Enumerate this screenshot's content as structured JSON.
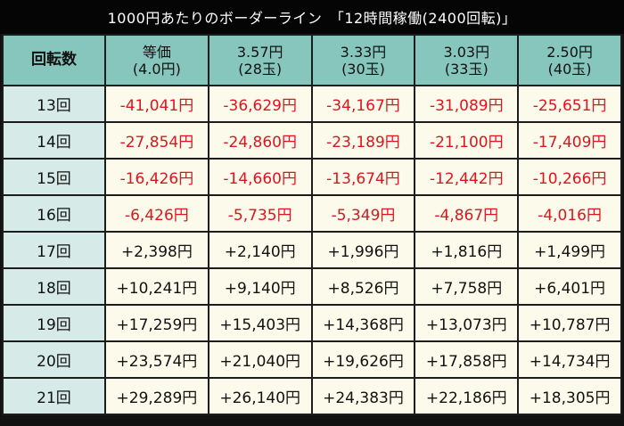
{
  "title": "1000円あたりのボーダーライン　「12時間稼働(2400回転)」",
  "header": {
    "rowhead": "回転数",
    "columns": [
      {
        "line1": "等価",
        "line2": "(4.0円)"
      },
      {
        "line1": "3.57円",
        "line2": "(28玉)"
      },
      {
        "line1": "3.33円",
        "line2": "(30玉)"
      },
      {
        "line1": "3.03円",
        "line2": "(33玉)"
      },
      {
        "line1": "2.50円",
        "line2": "(40玉)"
      }
    ]
  },
  "colors": {
    "title_bg": "#050505",
    "header_bg": "#86c6bd",
    "rowhead_bg": "#d6ebe7",
    "cell_bg": "#fcfbeb",
    "negative": "#e0141e",
    "positive": "#111111"
  },
  "rows": [
    {
      "label": "13回",
      "values": [
        "-41,041円",
        "-36,629円",
        "-34,167円",
        "-31,089円",
        "-25,651円"
      ]
    },
    {
      "label": "14回",
      "values": [
        "-27,854円",
        "-24,860円",
        "-23,189円",
        "-21,100円",
        "-17,409円"
      ]
    },
    {
      "label": "15回",
      "values": [
        "-16,426円",
        "-14,660円",
        "-13,674円",
        "-12,442円",
        "-10,266円"
      ]
    },
    {
      "label": "16回",
      "values": [
        "-6,426円",
        "-5,735円",
        "-5,349円",
        "-4,867円",
        "-4,016円"
      ]
    },
    {
      "label": "17回",
      "values": [
        "+2,398円",
        "+2,140円",
        "+1,996円",
        "+1,816円",
        "+1,499円"
      ]
    },
    {
      "label": "18回",
      "values": [
        "+10,241円",
        "+9,140円",
        "+8,526円",
        "+7,758円",
        "+6,401円"
      ]
    },
    {
      "label": "19回",
      "values": [
        "+17,259円",
        "+15,403円",
        "+14,368円",
        "+13,073円",
        "+10,787円"
      ]
    },
    {
      "label": "20回",
      "values": [
        "+23,574円",
        "+21,040円",
        "+19,626円",
        "+17,858円",
        "+14,734円"
      ]
    },
    {
      "label": "21回",
      "values": [
        "+29,289円",
        "+26,140円",
        "+24,383円",
        "+22,186円",
        "+18,305円"
      ]
    }
  ]
}
